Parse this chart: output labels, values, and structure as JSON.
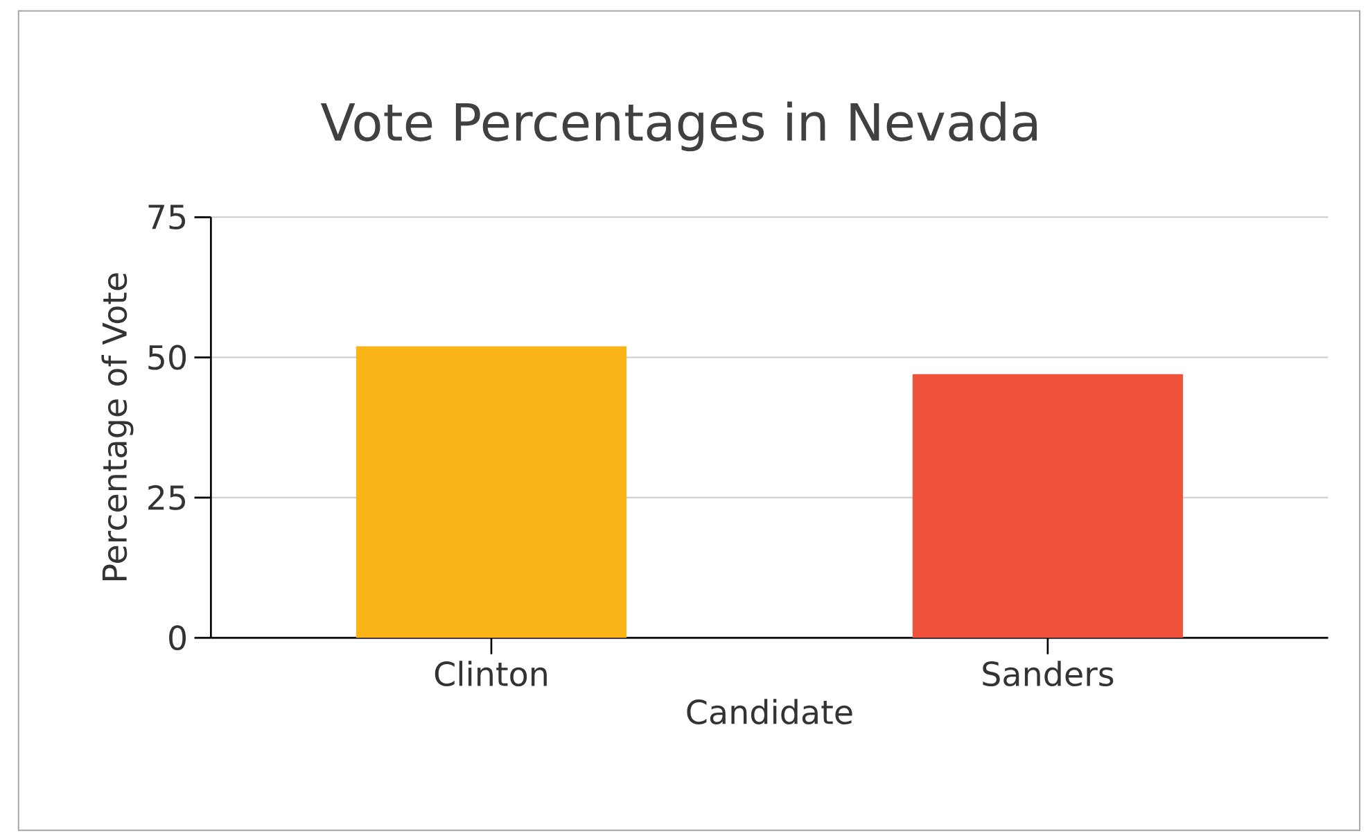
{
  "chart_data": {
    "type": "bar",
    "title": "Vote Percentages in Nevada",
    "xlabel": "Candidate",
    "ylabel": "Percentage of Vote",
    "categories": [
      "Clinton",
      "Sanders"
    ],
    "values": [
      52,
      47
    ],
    "colors": [
      "#fbb519",
      "#f0513a"
    ],
    "ylim": [
      0,
      75
    ],
    "yticks": [
      0,
      25,
      50,
      75
    ],
    "grid": "y"
  }
}
